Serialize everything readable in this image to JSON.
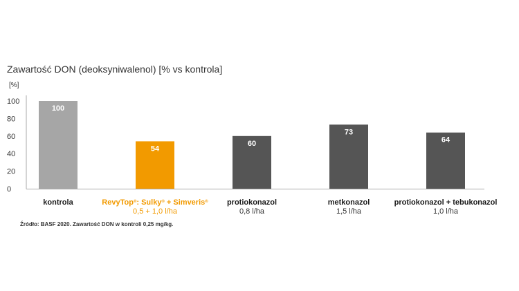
{
  "chart_data": {
    "type": "bar",
    "title": "Zawartość DON (deoksyniwalenol) [% vs kontrola]",
    "ylabel": "[%]",
    "xlabel": "",
    "ylim": [
      0,
      100
    ],
    "yticks": [
      0,
      20,
      40,
      60,
      80,
      100
    ],
    "grid": false,
    "categories": [
      {
        "name": "kontrola",
        "name_parts": [
          "kontrola"
        ],
        "dose": "",
        "value": 100,
        "color": "#a6a6a6",
        "label_color": "#1a1a1a",
        "dose_color": "#333333"
      },
      {
        "name": "RevyTop®: Sulky® + Simveris®",
        "name_parts": [
          "RevyTop",
          "®",
          ": Sulky",
          "®",
          " + Simveris",
          "®"
        ],
        "dose": "0,5 + 1,0 l/ha",
        "value": 54,
        "color": "#f29a00",
        "label_color": "#f29a00",
        "dose_color": "#f29a00"
      },
      {
        "name": "protiokonazol",
        "name_parts": [
          "protiokonazol"
        ],
        "dose": "0,8 l/ha",
        "value": 60,
        "color": "#555555",
        "label_color": "#1a1a1a",
        "dose_color": "#333333"
      },
      {
        "name": "metkonazol",
        "name_parts": [
          "metkonazol"
        ],
        "dose": "1,5 l/ha",
        "value": 73,
        "color": "#555555",
        "label_color": "#1a1a1a",
        "dose_color": "#333333"
      },
      {
        "name": "protiokonazol + tebukonazol",
        "name_parts": [
          "protiokonazol + tebukonazol"
        ],
        "dose": "1,0 l/ha",
        "value": 64,
        "color": "#555555",
        "label_color": "#1a1a1a",
        "dose_color": "#333333"
      }
    ],
    "value_label_color": "#ffffff",
    "axis_color": "#aaaaaa",
    "source_note": "Źródło: BASF 2020. Zawartość DON w kontroli 0,25 mg/kg."
  }
}
